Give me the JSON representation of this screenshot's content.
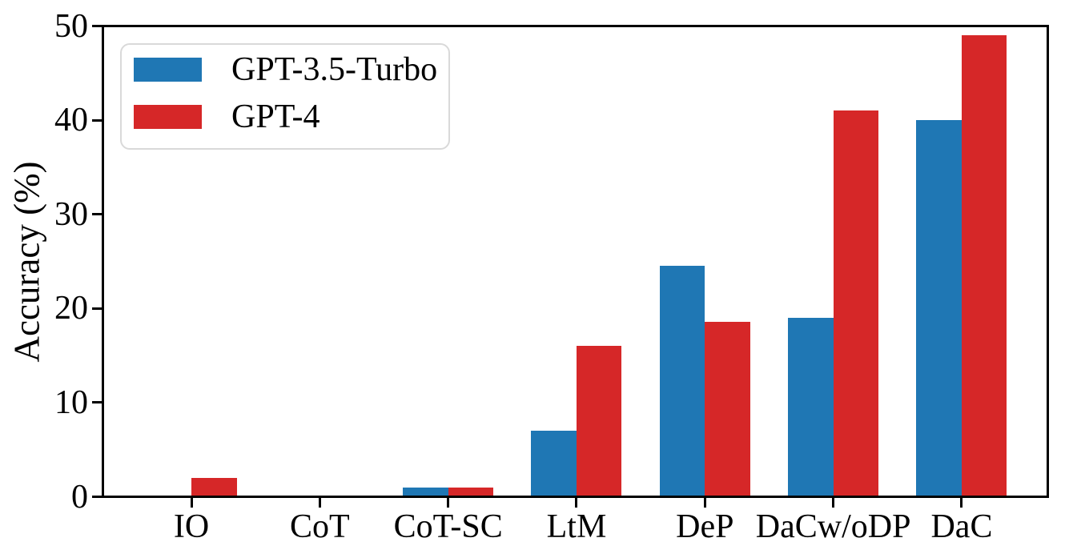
{
  "figure": {
    "background": "#ffffff",
    "axis_color": "#000000",
    "text_color": "#000000"
  },
  "chart_data": {
    "type": "bar",
    "title": "",
    "xlabel": "",
    "ylabel": "Accuracy (%)",
    "categories": [
      "IO",
      "CoT",
      "CoT-SC",
      "LtM",
      "DeP",
      "DaCw/oDP",
      "DaC"
    ],
    "series": [
      {
        "name": "GPT-3.5-Turbo",
        "color": "#1f77b4",
        "values": [
          0,
          0,
          1,
          7,
          24.5,
          19,
          40
        ]
      },
      {
        "name": "GPT-4",
        "color": "#d62728",
        "values": [
          2,
          0,
          1,
          16,
          18.6,
          41,
          49
        ]
      }
    ],
    "ylim": [
      0,
      50
    ],
    "yticks": [
      0,
      10,
      20,
      30,
      40,
      50
    ],
    "grid": false,
    "legend": {
      "position": "upper-left",
      "entries": [
        "GPT-3.5-Turbo",
        "GPT-4"
      ]
    }
  }
}
